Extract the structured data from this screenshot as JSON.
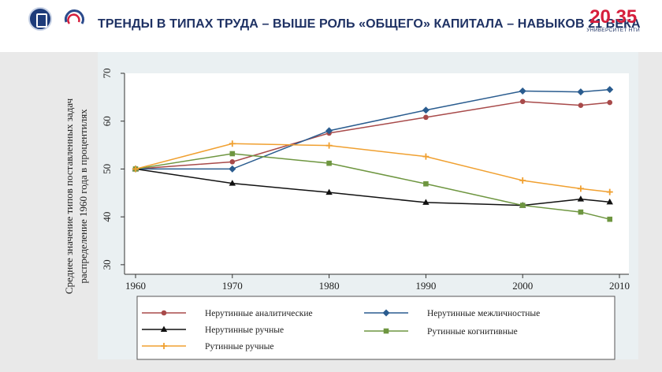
{
  "header": {
    "title": "ТРЕНДЫ В ТИПАХ ТРУДА – ВЫШЕ РОЛЬ «ОБЩЕГО» КАПИТАЛА – НАВЫКОВ 21 ВЕКА",
    "brand_number": "20.35",
    "brand_subtitle": "УНИВЕРСИТЕТ НТИ"
  },
  "chart_data": {
    "type": "line",
    "title": "",
    "xlabel": "",
    "ylabel": "Среднее значение типов поставленных задач распределение 1960 года в процентилях",
    "ylabel_lines": [
      "Среднее значение типов поставленных задач",
      "распределение 1960 года в процентилях"
    ],
    "xlim": [
      1960,
      2010
    ],
    "ylim": [
      28,
      70
    ],
    "x_ticks": [
      1960,
      1970,
      1980,
      1990,
      2000,
      2010
    ],
    "y_ticks": [
      30,
      40,
      50,
      60,
      70
    ],
    "grid": false,
    "legend_position": "bottom",
    "series": [
      {
        "name": "Нерутинные аналитические",
        "color": "#a84a4a",
        "marker": "circle",
        "x": [
          1960,
          1970,
          1980,
          1990,
          2000,
          2006,
          2009
        ],
        "y": [
          50.0,
          51.5,
          57.5,
          60.8,
          64.1,
          63.3,
          63.9
        ]
      },
      {
        "name": "Нерутинные межличностные",
        "color": "#2a5c8f",
        "marker": "diamond",
        "x": [
          1960,
          1970,
          1980,
          1990,
          2000,
          2006,
          2009
        ],
        "y": [
          50.0,
          50.0,
          58.0,
          62.3,
          66.3,
          66.1,
          66.6
        ]
      },
      {
        "name": "Нерутинные ручные",
        "color": "#111111",
        "marker": "triangle",
        "x": [
          1960,
          1970,
          1980,
          1990,
          2000,
          2006,
          2009
        ],
        "y": [
          50.0,
          47.0,
          45.1,
          43.0,
          42.4,
          43.7,
          43.1
        ]
      },
      {
        "name": "Рутинные когнитивные",
        "color": "#6e9640",
        "marker": "square",
        "x": [
          1960,
          1970,
          1980,
          1990,
          2000,
          2006,
          2009
        ],
        "y": [
          50.0,
          53.2,
          51.2,
          46.9,
          42.4,
          41.0,
          39.5
        ]
      },
      {
        "name": "Рутинные ручные",
        "color": "#f0a030",
        "marker": "plus",
        "x": [
          1960,
          1970,
          1980,
          1990,
          2000,
          2006,
          2009
        ],
        "y": [
          50.0,
          55.3,
          54.9,
          52.6,
          47.6,
          45.9,
          45.2
        ]
      }
    ]
  }
}
